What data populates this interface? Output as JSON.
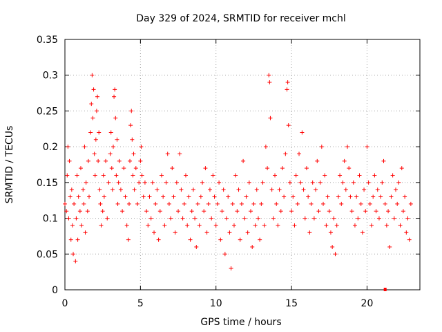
{
  "chart_data": {
    "type": "scatter",
    "title": "Day 329 of 2024, SRMTID for receiver mchl",
    "xlabel": "GPS time / hours",
    "ylabel": "SRMTID / TECUs",
    "xlim": [
      0,
      23.5
    ],
    "ylim": [
      0,
      0.35
    ],
    "xticks": [
      0,
      5,
      10,
      15,
      20
    ],
    "xtick_labels": [
      "0",
      "5",
      "10",
      "15",
      "20"
    ],
    "yticks": [
      0,
      0.05,
      0.1,
      0.15,
      0.2,
      0.25,
      0.3,
      0.35
    ],
    "ytick_labels": [
      "0",
      "0.05",
      "0.1",
      "0.15",
      "0.2",
      "0.25",
      "0.3",
      "0.35"
    ],
    "grid": true,
    "marker": "+",
    "color": "#ff0000",
    "series": [
      {
        "name": "SRMTID",
        "points": [
          [
            0.0,
            0.12
          ],
          [
            0.1,
            0.11
          ],
          [
            0.15,
            0.16
          ],
          [
            0.2,
            0.2
          ],
          [
            0.25,
            0.1
          ],
          [
            0.3,
            0.18
          ],
          [
            0.35,
            0.13
          ],
          [
            0.4,
            0.07
          ],
          [
            0.45,
            0.14
          ],
          [
            0.5,
            0.09
          ],
          [
            0.55,
            0.05
          ],
          [
            0.6,
            0.12
          ],
          [
            0.7,
            0.04
          ],
          [
            0.75,
            0.1
          ],
          [
            0.8,
            0.16
          ],
          [
            0.85,
            0.07
          ],
          [
            0.9,
            0.13
          ],
          [
            1.0,
            0.11
          ],
          [
            1.05,
            0.17
          ],
          [
            1.1,
            0.09
          ],
          [
            1.2,
            0.14
          ],
          [
            1.25,
            0.12
          ],
          [
            1.3,
            0.2
          ],
          [
            1.35,
            0.08
          ],
          [
            1.4,
            0.15
          ],
          [
            1.5,
            0.11
          ],
          [
            1.55,
            0.18
          ],
          [
            1.6,
            0.13
          ],
          [
            1.7,
            0.22
          ],
          [
            1.75,
            0.26
          ],
          [
            1.8,
            0.3
          ],
          [
            1.85,
            0.24
          ],
          [
            1.9,
            0.28
          ],
          [
            1.95,
            0.19
          ],
          [
            2.0,
            0.16
          ],
          [
            2.05,
            0.21
          ],
          [
            2.1,
            0.25
          ],
          [
            2.15,
            0.27
          ],
          [
            2.2,
            0.18
          ],
          [
            2.25,
            0.22
          ],
          [
            2.3,
            0.14
          ],
          [
            2.35,
            0.12
          ],
          [
            2.4,
            0.09
          ],
          [
            2.5,
            0.11
          ],
          [
            2.55,
            0.16
          ],
          [
            2.6,
            0.13
          ],
          [
            2.7,
            0.18
          ],
          [
            2.8,
            0.1
          ],
          [
            2.9,
            0.15
          ],
          [
            3.0,
            0.19
          ],
          [
            3.05,
            0.22
          ],
          [
            3.1,
            0.17
          ],
          [
            3.15,
            0.14
          ],
          [
            3.2,
            0.2
          ],
          [
            3.25,
            0.27
          ],
          [
            3.3,
            0.28
          ],
          [
            3.35,
            0.24
          ],
          [
            3.4,
            0.16
          ],
          [
            3.45,
            0.21
          ],
          [
            3.5,
            0.12
          ],
          [
            3.55,
            0.15
          ],
          [
            3.6,
            0.18
          ],
          [
            3.7,
            0.14
          ],
          [
            3.8,
            0.11
          ],
          [
            3.9,
            0.17
          ],
          [
            4.0,
            0.13
          ],
          [
            4.1,
            0.09
          ],
          [
            4.2,
            0.07
          ],
          [
            4.25,
            0.12
          ],
          [
            4.3,
            0.18
          ],
          [
            4.35,
            0.23
          ],
          [
            4.4,
            0.25
          ],
          [
            4.45,
            0.21
          ],
          [
            4.5,
            0.16
          ],
          [
            4.55,
            0.19
          ],
          [
            4.6,
            0.14
          ],
          [
            4.7,
            0.17
          ],
          [
            4.8,
            0.12
          ],
          [
            4.9,
            0.15
          ],
          [
            5.0,
            0.18
          ],
          [
            5.05,
            0.2
          ],
          [
            5.1,
            0.16
          ],
          [
            5.2,
            0.13
          ],
          [
            5.3,
            0.15
          ],
          [
            5.4,
            0.11
          ],
          [
            5.5,
            0.09
          ],
          [
            5.6,
            0.13
          ],
          [
            5.7,
            0.1
          ],
          [
            5.8,
            0.15
          ],
          [
            5.9,
            0.08
          ],
          [
            6.0,
            0.12
          ],
          [
            6.1,
            0.14
          ],
          [
            6.2,
            0.07
          ],
          [
            6.3,
            0.11
          ],
          [
            6.4,
            0.16
          ],
          [
            6.5,
            0.13
          ],
          [
            6.6,
            0.09
          ],
          [
            6.7,
            0.15
          ],
          [
            6.8,
            0.19
          ],
          [
            6.9,
            0.12
          ],
          [
            7.0,
            0.1
          ],
          [
            7.1,
            0.17
          ],
          [
            7.2,
            0.13
          ],
          [
            7.3,
            0.08
          ],
          [
            7.4,
            0.15
          ],
          [
            7.5,
            0.11
          ],
          [
            7.6,
            0.19
          ],
          [
            7.7,
            0.14
          ],
          [
            7.8,
            0.1
          ],
          [
            7.9,
            0.12
          ],
          [
            8.0,
            0.16
          ],
          [
            8.1,
            0.09
          ],
          [
            8.2,
            0.13
          ],
          [
            8.3,
            0.07
          ],
          [
            8.4,
            0.11
          ],
          [
            8.5,
            0.14
          ],
          [
            8.6,
            0.1
          ],
          [
            8.7,
            0.06
          ],
          [
            8.8,
            0.12
          ],
          [
            8.9,
            0.09
          ],
          [
            9.0,
            0.13
          ],
          [
            9.1,
            0.15
          ],
          [
            9.2,
            0.11
          ],
          [
            9.3,
            0.17
          ],
          [
            9.4,
            0.08
          ],
          [
            9.5,
            0.12
          ],
          [
            9.6,
            0.14
          ],
          [
            9.7,
            0.1
          ],
          [
            9.8,
            0.16
          ],
          [
            9.9,
            0.13
          ],
          [
            10.0,
            0.09
          ],
          [
            10.1,
            0.12
          ],
          [
            10.2,
            0.15
          ],
          [
            10.3,
            0.07
          ],
          [
            10.4,
            0.11
          ],
          [
            10.5,
            0.14
          ],
          [
            10.6,
            0.05
          ],
          [
            10.7,
            0.1
          ],
          [
            10.8,
            0.13
          ],
          [
            10.9,
            0.08
          ],
          [
            11.0,
            0.03
          ],
          [
            11.1,
            0.12
          ],
          [
            11.2,
            0.09
          ],
          [
            11.3,
            0.16
          ],
          [
            11.4,
            0.11
          ],
          [
            11.5,
            0.14
          ],
          [
            11.6,
            0.07
          ],
          [
            11.7,
            0.12
          ],
          [
            11.8,
            0.18
          ],
          [
            11.9,
            0.1
          ],
          [
            12.0,
            0.13
          ],
          [
            12.1,
            0.08
          ],
          [
            12.2,
            0.15
          ],
          [
            12.3,
            0.11
          ],
          [
            12.4,
            0.06
          ],
          [
            12.5,
            0.12
          ],
          [
            12.6,
            0.09
          ],
          [
            12.7,
            0.14
          ],
          [
            12.8,
            0.1
          ],
          [
            12.9,
            0.07
          ],
          [
            13.0,
            0.12
          ],
          [
            13.1,
            0.15
          ],
          [
            13.2,
            0.09
          ],
          [
            13.3,
            0.2
          ],
          [
            13.4,
            0.17
          ],
          [
            13.5,
            0.3
          ],
          [
            13.55,
            0.29
          ],
          [
            13.6,
            0.24
          ],
          [
            13.7,
            0.14
          ],
          [
            13.8,
            0.1
          ],
          [
            13.9,
            0.16
          ],
          [
            14.0,
            0.12
          ],
          [
            14.1,
            0.09
          ],
          [
            14.2,
            0.14
          ],
          [
            14.3,
            0.11
          ],
          [
            14.4,
            0.17
          ],
          [
            14.5,
            0.13
          ],
          [
            14.6,
            0.19
          ],
          [
            14.7,
            0.28
          ],
          [
            14.75,
            0.29
          ],
          [
            14.8,
            0.23
          ],
          [
            14.9,
            0.15
          ],
          [
            15.0,
            0.11
          ],
          [
            15.1,
            0.13
          ],
          [
            15.2,
            0.09
          ],
          [
            15.3,
            0.16
          ],
          [
            15.4,
            0.12
          ],
          [
            15.5,
            0.19
          ],
          [
            15.6,
            0.15
          ],
          [
            15.7,
            0.22
          ],
          [
            15.8,
            0.14
          ],
          [
            15.9,
            0.1
          ],
          [
            16.0,
            0.17
          ],
          [
            16.1,
            0.13
          ],
          [
            16.2,
            0.08
          ],
          [
            16.3,
            0.12
          ],
          [
            16.4,
            0.15
          ],
          [
            16.5,
            0.1
          ],
          [
            16.6,
            0.14
          ],
          [
            16.7,
            0.18
          ],
          [
            16.8,
            0.11
          ],
          [
            16.9,
            0.15
          ],
          [
            17.0,
            0.2
          ],
          [
            17.1,
            0.12
          ],
          [
            17.2,
            0.16
          ],
          [
            17.3,
            0.09
          ],
          [
            17.4,
            0.13
          ],
          [
            17.5,
            0.11
          ],
          [
            17.6,
            0.08
          ],
          [
            17.7,
            0.06
          ],
          [
            17.8,
            0.1
          ],
          [
            17.9,
            0.05
          ],
          [
            18.0,
            0.09
          ],
          [
            18.1,
            0.13
          ],
          [
            18.2,
            0.16
          ],
          [
            18.3,
            0.12
          ],
          [
            18.4,
            0.15
          ],
          [
            18.5,
            0.18
          ],
          [
            18.6,
            0.14
          ],
          [
            18.7,
            0.2
          ],
          [
            18.8,
            0.17
          ],
          [
            18.9,
            0.13
          ],
          [
            19.0,
            0.11
          ],
          [
            19.1,
            0.15
          ],
          [
            19.2,
            0.09
          ],
          [
            19.3,
            0.13
          ],
          [
            19.4,
            0.1
          ],
          [
            19.5,
            0.16
          ],
          [
            19.6,
            0.12
          ],
          [
            19.7,
            0.08
          ],
          [
            19.8,
            0.14
          ],
          [
            19.9,
            0.11
          ],
          [
            20.0,
            0.2
          ],
          [
            20.1,
            0.15
          ],
          [
            20.2,
            0.12
          ],
          [
            20.3,
            0.09
          ],
          [
            20.4,
            0.13
          ],
          [
            20.5,
            0.16
          ],
          [
            20.6,
            0.11
          ],
          [
            20.7,
            0.14
          ],
          [
            20.8,
            0.1
          ],
          [
            20.9,
            0.13
          ],
          [
            21.0,
            0.15
          ],
          [
            21.1,
            0.18
          ],
          [
            21.2,
            0.12
          ],
          [
            21.3,
            0.09
          ],
          [
            21.4,
            0.11
          ],
          [
            21.5,
            0.06
          ],
          [
            21.6,
            0.13
          ],
          [
            21.7,
            0.16
          ],
          [
            21.8,
            0.1
          ],
          [
            21.9,
            0.14
          ],
          [
            22.0,
            0.12
          ],
          [
            22.1,
            0.15
          ],
          [
            22.2,
            0.09
          ],
          [
            22.3,
            0.17
          ],
          [
            22.4,
            0.11
          ],
          [
            22.5,
            0.13
          ],
          [
            22.6,
            0.08
          ],
          [
            22.7,
            0.1
          ],
          [
            22.8,
            0.07
          ],
          [
            22.9,
            0.12
          ]
        ]
      }
    ],
    "outlier_marks": [
      [
        21.2,
        0.0
      ]
    ]
  }
}
